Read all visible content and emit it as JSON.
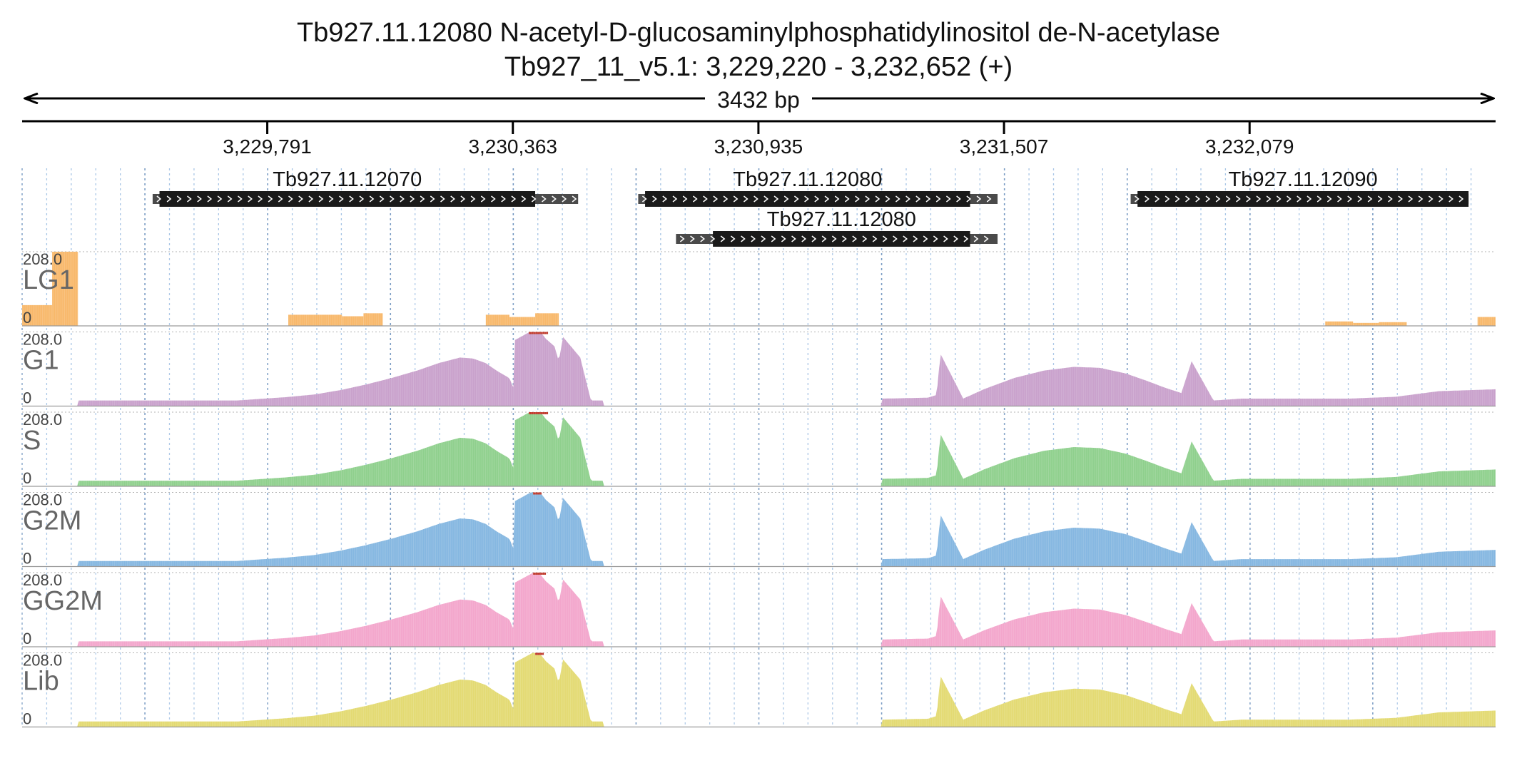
{
  "header": {
    "title_line1": "Tb927.11.12080  N-acetyl-D-glucosaminylphosphatidylinositol de-N-acetylase",
    "title_line2": "Tb927_11_v5.1: 3,229,220 - 3,232,652 (+)",
    "span_label": "3432 bp"
  },
  "chart_data": {
    "type": "area",
    "region": {
      "chrom": "Tb927_11_v5.1",
      "start": 3229220,
      "end": 3232652,
      "strand": "+"
    },
    "axis_ticks": [
      {
        "pos": 3229791,
        "label": "3,229,791"
      },
      {
        "pos": 3230363,
        "label": "3,230,363"
      },
      {
        "pos": 3230935,
        "label": "3,230,935"
      },
      {
        "pos": 3231507,
        "label": "3,231,507"
      },
      {
        "pos": 3232079,
        "label": "3,232,079"
      }
    ],
    "genes": [
      {
        "name": "Tb927.11.12070",
        "row": 0,
        "start": 3229524,
        "end": 3230515,
        "cds_start": 3229540,
        "cds_end": 3230415
      },
      {
        "name": "Tb927.11.12080",
        "row": 0,
        "start": 3230655,
        "end": 3231492,
        "cds_start": 3230671,
        "cds_end": 3231428
      },
      {
        "name": "Tb927.11.12090",
        "row": 0,
        "start": 3231802,
        "end": 3232589,
        "cds_start": 3231818,
        "cds_end": 3232589
      },
      {
        "name": "Tb927.11.12080",
        "row": 1,
        "start": 3230743,
        "end": 3231492,
        "cds_start": 3230829,
        "cds_end": 3231428
      }
    ],
    "ylim": [
      0,
      208.0
    ],
    "ymax_label": "208.0",
    "ymin_label": "0",
    "coverage_profile": [
      [
        3229220,
        0
      ],
      [
        3229350,
        0
      ],
      [
        3229352,
        0.3
      ],
      [
        3229720,
        0.3
      ],
      [
        3229835,
        0.48
      ],
      [
        3229900,
        0.62
      ],
      [
        3229960,
        0.85
      ],
      [
        3230020,
        1.15
      ],
      [
        3230080,
        1.5
      ],
      [
        3230140,
        1.9
      ],
      [
        3230190,
        2.3
      ],
      [
        3230240,
        2.6
      ],
      [
        3230270,
        2.55
      ],
      [
        3230300,
        2.3
      ],
      [
        3230325,
        1.9
      ],
      [
        3230355,
        1.5
      ],
      [
        3230364,
        1.0
      ],
      [
        3230365,
        3.5
      ],
      [
        3230420,
        4.2
      ],
      [
        3230440,
        3.6
      ],
      [
        3230460,
        3.2
      ],
      [
        3230470,
        2.4
      ],
      [
        3230480,
        3.7
      ],
      [
        3230520,
        2.6
      ],
      [
        3230545,
        0.3
      ],
      [
        3230573,
        0.3
      ],
      [
        3230574,
        2.6
      ],
      [
        3230575,
        0
      ],
      [
        3231220,
        0
      ],
      [
        3231221,
        0.4
      ],
      [
        3231330,
        0.45
      ],
      [
        3231350,
        0.6
      ],
      [
        3231359,
        2.8
      ],
      [
        3231412,
        0.4
      ],
      [
        3231460,
        0.9
      ],
      [
        3231530,
        1.5
      ],
      [
        3231600,
        1.9
      ],
      [
        3231670,
        2.1
      ],
      [
        3231730,
        2.05
      ],
      [
        3231790,
        1.75
      ],
      [
        3231840,
        1.35
      ],
      [
        3231880,
        1.0
      ],
      [
        3231920,
        0.7
      ],
      [
        3231944,
        2.4
      ],
      [
        3231995,
        0.3
      ],
      [
        3232060,
        0.4
      ],
      [
        3232310,
        0.4
      ],
      [
        3232420,
        0.5
      ],
      [
        3232520,
        0.8
      ],
      [
        3232652,
        0.9
      ]
    ],
    "tracks": [
      {
        "name": "LG1",
        "color": "#F8B86A",
        "peak": 212,
        "spikes": [],
        "bins": [
          [
            3229220,
            3229290,
            0.28
          ],
          [
            3229290,
            3229350,
            1.0
          ],
          [
            3229840,
            3229965,
            0.15
          ],
          [
            3229965,
            3230015,
            0.13
          ],
          [
            3230015,
            3230060,
            0.17
          ],
          [
            3230300,
            3230355,
            0.15
          ],
          [
            3230355,
            3230415,
            0.12
          ],
          [
            3230415,
            3230470,
            0.17
          ],
          [
            3232255,
            3232320,
            0.06
          ],
          [
            3232320,
            3232380,
            0.04
          ],
          [
            3232380,
            3232445,
            0.05
          ],
          [
            3232610,
            3232652,
            0.12
          ]
        ]
      },
      {
        "name": "G1",
        "color": "#C9A1CC",
        "peak": 220,
        "spikes": [
          [
            3230400,
            3230445
          ]
        ]
      },
      {
        "name": "S",
        "color": "#8FD08D",
        "peak": 220,
        "spikes": [
          [
            3230400,
            3230445
          ]
        ]
      },
      {
        "name": "G2M",
        "color": "#85B7E1",
        "peak": 218,
        "spikes": [
          [
            3230410,
            3230430
          ]
        ]
      },
      {
        "name": "GG2M",
        "color": "#F3A6CC",
        "peak": 214,
        "spikes": [
          [
            3230410,
            3230440
          ]
        ]
      },
      {
        "name": "Lib",
        "color": "#E3DA72",
        "peak": 215,
        "spikes": [
          [
            3230415,
            3230435
          ]
        ]
      }
    ],
    "legend_placement": "inline-left"
  }
}
